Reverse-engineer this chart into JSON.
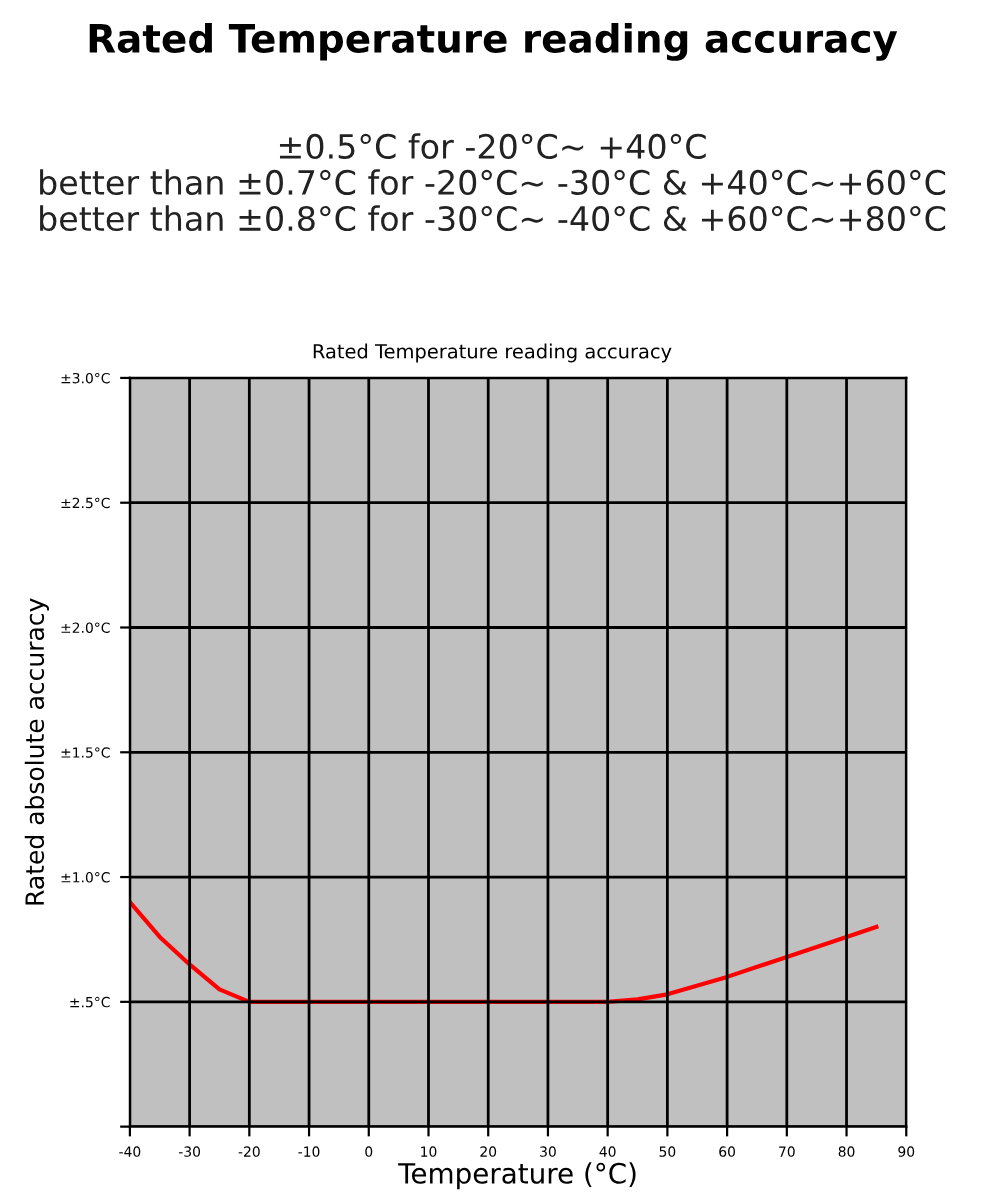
{
  "chart_data": {
    "type": "line",
    "title": "Rated Temperature reading accuracy",
    "subtitle": "±0.5°C for -20°C~ +40°C\nbetter than ±0.7°C for -20°C~ -30°C & +40°C~+60°C\nbetter than ±0.8°C for -30°C~ -40°C & +60°C~+80°C",
    "annotations": [
      "Rated Temperature reading accuracy"
    ],
    "xlabel": "Temperature (°C)",
    "ylabel": "Rated absolute accuracy",
    "x": [
      -40,
      -35,
      -30,
      -25,
      -20,
      -10,
      0,
      10,
      20,
      30,
      40,
      45,
      50,
      60,
      70,
      80,
      85
    ],
    "series": [
      {
        "color": "#ff0000",
        "values": [
          0.9,
          0.76,
          0.65,
          0.55,
          0.5,
          0.5,
          0.5,
          0.5,
          0.5,
          0.5,
          0.5,
          0.51,
          0.53,
          0.6,
          0.68,
          0.76,
          0.8
        ]
      }
    ],
    "xlim": [
      -40,
      90
    ],
    "xticks": [
      -40,
      -30,
      -20,
      -10,
      0,
      10,
      20,
      30,
      40,
      50,
      60,
      70,
      80,
      90
    ],
    "ylim": [
      0,
      3
    ],
    "yticks": [
      {
        "value": 0,
        "label": null
      },
      {
        "value": 0.5,
        "label": "±.5°C"
      },
      {
        "value": 1.0,
        "label": "±1.0°C"
      },
      {
        "value": 1.5,
        "label": "±1.5°C"
      },
      {
        "value": 2.0,
        "label": "±2.0°C"
      },
      {
        "value": 2.5,
        "label": "±2.5°C"
      },
      {
        "value": 3.0,
        "label": "±3.0°C"
      }
    ],
    "grid": true,
    "marker": "none",
    "line_style": "solid",
    "legend": false
  }
}
